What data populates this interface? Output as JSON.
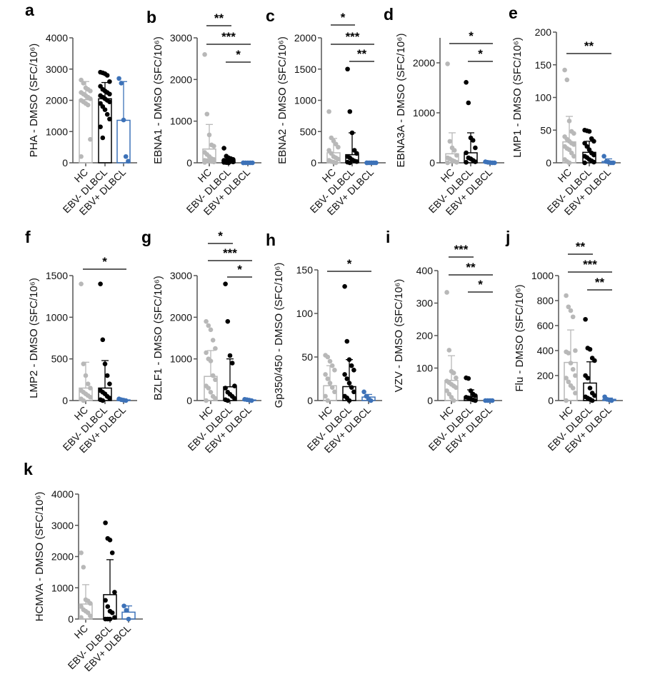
{
  "chart_data": [
    {
      "panel": "a",
      "type": "bar",
      "ylabel": "PHA - DMSO (SFC/10⁶)",
      "ylim": [
        0,
        4000
      ],
      "ticks": [
        0,
        1000,
        2000,
        3000,
        4000
      ],
      "categories": [
        "HC",
        "EBV- DLBCL",
        "EBV+ DLBCL"
      ],
      "means": [
        2020,
        2050,
        1360
      ],
      "sd_upper": [
        2600,
        2570,
        2600
      ],
      "points": [
        [
          2650,
          2550,
          2400,
          2350,
          2300,
          2250,
          2200,
          2150,
          2100,
          2050,
          2000,
          1950,
          1900,
          1850,
          750,
          200
        ],
        [
          2900,
          2880,
          2850,
          2800,
          2600,
          2450,
          2350,
          2300,
          2250,
          2200,
          2150,
          2100,
          2050,
          2000,
          1950,
          1900,
          1800,
          1700,
          1550,
          1400,
          1150,
          800
        ],
        [
          2700,
          2550,
          1370,
          200,
          50
        ]
      ],
      "significance": []
    },
    {
      "panel": "b",
      "type": "bar",
      "ylabel": "EBNA1 - DMSO (SFC/10⁶)",
      "ylim": [
        0,
        3000
      ],
      "ticks": [
        0,
        1000,
        2000,
        3000
      ],
      "categories": [
        "HC",
        "EBV- DLBCL",
        "EBV+ DLBCL"
      ],
      "means": [
        330,
        60,
        5
      ],
      "sd_upper": [
        920,
        130,
        8
      ],
      "points": [
        [
          2600,
          1170,
          670,
          430,
          400,
          250,
          200,
          150,
          100,
          80,
          60,
          50,
          40,
          30,
          20,
          10
        ],
        [
          350,
          160,
          120,
          100,
          80,
          60,
          50,
          40,
          30,
          20,
          10,
          5,
          0
        ],
        [
          0,
          0,
          0,
          0,
          0,
          0
        ]
      ],
      "significance": [
        {
          "groups": [
            0,
            1
          ],
          "label": "**"
        },
        {
          "groups": [
            0,
            2
          ],
          "label": "***"
        },
        {
          "groups": [
            1,
            2
          ],
          "label": "*"
        }
      ]
    },
    {
      "panel": "c",
      "type": "bar",
      "ylabel": "EBNA2 - DMSO (SFC/10⁶)",
      "ylim": [
        0,
        2000
      ],
      "ticks": [
        0,
        500,
        1000,
        1500,
        2000
      ],
      "categories": [
        "HC",
        "EBV- DLBCL",
        "EBV+ DLBCL"
      ],
      "means": [
        160,
        130,
        3
      ],
      "sd_upper": [
        390,
        480,
        5
      ],
      "points": [
        [
          820,
          400,
          350,
          300,
          250,
          200,
          150,
          100,
          80,
          60,
          40,
          20,
          10,
          0
        ],
        [
          1500,
          820,
          480,
          200,
          150,
          100,
          80,
          50,
          30,
          20,
          10,
          0
        ],
        [
          0,
          0,
          0,
          0,
          0,
          0
        ]
      ],
      "significance": [
        {
          "groups": [
            0,
            1
          ],
          "label": "*"
        },
        {
          "groups": [
            0,
            2
          ],
          "label": "***"
        },
        {
          "groups": [
            1,
            2
          ],
          "label": "**"
        }
      ]
    },
    {
      "panel": "d",
      "type": "bar",
      "ylabel": "EBNA3A - DMSO (SFC/10⁶)",
      "ylim": [
        0,
        2500
      ],
      "ticks": [
        0,
        1000,
        2000
      ],
      "categories": [
        "HC",
        "EBV- DLBCL",
        "EBV+ DLBCL"
      ],
      "means": [
        180,
        200,
        8
      ],
      "sd_upper": [
        600,
        600,
        15
      ],
      "points": [
        [
          1980,
          430,
          300,
          250,
          150,
          100,
          80,
          50,
          30,
          10,
          0
        ],
        [
          1610,
          1200,
          500,
          450,
          300,
          200,
          100,
          80,
          50,
          20,
          10
        ],
        [
          20,
          10,
          5,
          0,
          0
        ]
      ],
      "significance": [
        {
          "groups": [
            0,
            2
          ],
          "label": "*"
        },
        {
          "groups": [
            1,
            2
          ],
          "label": "*"
        }
      ]
    },
    {
      "panel": "e",
      "type": "bar",
      "ylabel": "LMP1 - DMSO (SFC/10⁶)",
      "ylim": [
        0,
        200
      ],
      "ticks": [
        0,
        50,
        100,
        150,
        200
      ],
      "categories": [
        "HC",
        "EBV- DLBCL",
        "EBV+ DLBCL"
      ],
      "means": [
        32,
        16,
        2
      ],
      "sd_upper": [
        71,
        33,
        6
      ],
      "points": [
        [
          142,
          127,
          64,
          48,
          45,
          40,
          36,
          33,
          30,
          28,
          25,
          22,
          20,
          15,
          10,
          5,
          2,
          0
        ],
        [
          50,
          49,
          48,
          37,
          33,
          30,
          25,
          20,
          15,
          12,
          10,
          8,
          5,
          3,
          1,
          0
        ],
        [
          10,
          2,
          1,
          0,
          0
        ]
      ],
      "significance": [
        {
          "groups": [
            0,
            2
          ],
          "label": "**"
        }
      ]
    },
    {
      "panel": "f",
      "type": "bar",
      "ylabel": "LMP2 - DMSO (SFC/10⁶)",
      "ylim": [
        0,
        1500
      ],
      "ticks": [
        0,
        500,
        1000,
        1500
      ],
      "categories": [
        "HC",
        "EBV- DLBCL",
        "EBV+ DLBCL"
      ],
      "means": [
        150,
        150,
        8
      ],
      "sd_upper": [
        460,
        480,
        15
      ],
      "points": [
        [
          1400,
          440,
          300,
          200,
          150,
          120,
          100,
          80,
          60,
          40,
          20,
          0
        ],
        [
          1400,
          730,
          440,
          300,
          200,
          120,
          100,
          80,
          50,
          30,
          10,
          0
        ],
        [
          20,
          10,
          5,
          0
        ]
      ],
      "significance": [
        {
          "groups": [
            0,
            2
          ],
          "label": "*"
        }
      ]
    },
    {
      "panel": "g",
      "type": "bar",
      "ylabel": "BZLF1 - DMSO (SFC/10⁶)",
      "ylim": [
        0,
        3000
      ],
      "ticks": [
        0,
        1000,
        2000,
        3000
      ],
      "categories": [
        "HC",
        "EBV- DLBCL",
        "EBV+ DLBCL"
      ],
      "means": [
        580,
        330,
        15
      ],
      "sd_upper": [
        1200,
        1000,
        25
      ],
      "points": [
        [
          1900,
          1800,
          1700,
          1450,
          1250,
          1150,
          1000,
          950,
          600,
          500,
          350,
          300,
          200,
          100,
          50,
          0
        ],
        [
          2800,
          1900,
          1080,
          900,
          350,
          300,
          200,
          150,
          100,
          50,
          20,
          0
        ],
        [
          30,
          20,
          10,
          0
        ]
      ],
      "significance": [
        {
          "groups": [
            0,
            1
          ],
          "label": "*"
        },
        {
          "groups": [
            0,
            2
          ],
          "label": "***"
        },
        {
          "groups": [
            1,
            2
          ],
          "label": "*"
        }
      ]
    },
    {
      "panel": "h",
      "type": "bar",
      "ylabel": "Gp350/450 - DMSO (SFC/10⁶)",
      "ylim": [
        0,
        150
      ],
      "ticks": [
        0,
        50,
        100,
        150
      ],
      "categories": [
        "HC",
        "EBV- DLBCL",
        "EBV+ DLBCL"
      ],
      "means": [
        17,
        16,
        4
      ],
      "sd_upper": [
        40,
        47,
        7
      ],
      "points": [
        [
          52,
          50,
          45,
          40,
          35,
          30,
          25,
          20,
          15,
          10,
          5,
          0
        ],
        [
          131,
          68,
          47,
          40,
          35,
          30,
          25,
          20,
          15,
          10,
          5,
          3,
          0
        ],
        [
          10,
          5,
          2,
          0
        ]
      ],
      "significance": [
        {
          "groups": [
            0,
            2
          ],
          "label": "*"
        }
      ]
    },
    {
      "panel": "i",
      "type": "bar",
      "ylabel": "VZV - DMSO (SFC/10⁶)",
      "ylim": [
        0,
        400
      ],
      "ticks": [
        0,
        100,
        200,
        300,
        400
      ],
      "categories": [
        "HC",
        "EBV- DLBCL",
        "EBV+ DLBCL"
      ],
      "means": [
        62,
        12,
        0
      ],
      "sd_upper": [
        138,
        33,
        0
      ],
      "points": [
        [
          333,
          155,
          90,
          85,
          70,
          60,
          55,
          50,
          45,
          40,
          30,
          20,
          10,
          0
        ],
        [
          70,
          68,
          30,
          20,
          15,
          10,
          8,
          5,
          2,
          0
        ],
        [
          0,
          0,
          0,
          0
        ]
      ],
      "significance": [
        {
          "groups": [
            0,
            1
          ],
          "label": "***"
        },
        {
          "groups": [
            0,
            2
          ],
          "label": "**"
        },
        {
          "groups": [
            1,
            2
          ],
          "label": "*"
        }
      ]
    },
    {
      "panel": "j",
      "type": "bar",
      "ylabel": "Flu - DMSO (SFC/10⁶)",
      "ylim": [
        0,
        1000
      ],
      "ticks": [
        0,
        200,
        400,
        600,
        800,
        1000
      ],
      "categories": [
        "HC",
        "EBV- DLBCL",
        "EBV+ DLBCL"
      ],
      "means": [
        305,
        140,
        10
      ],
      "sd_upper": [
        565,
        310,
        20
      ],
      "points": [
        [
          840,
          750,
          720,
          670,
          400,
          390,
          380,
          300,
          250,
          200,
          180,
          150,
          120,
          100,
          60,
          0
        ],
        [
          650,
          420,
          410,
          340,
          320,
          200,
          180,
          100,
          60,
          40,
          30,
          20,
          10,
          0
        ],
        [
          30,
          10,
          5,
          0
        ]
      ],
      "significance": [
        {
          "groups": [
            0,
            1
          ],
          "label": "**"
        },
        {
          "groups": [
            0,
            2
          ],
          "label": "***"
        },
        {
          "groups": [
            1,
            2
          ],
          "label": "**"
        }
      ]
    },
    {
      "panel": "k",
      "type": "bar",
      "ylabel": "HCMVA - DMSO (SFC/10⁶)",
      "ylim": [
        0,
        4000
      ],
      "ticks": [
        0,
        1000,
        2000,
        3000,
        4000
      ],
      "categories": [
        "HC",
        "EBV- DLBCL",
        "EBV+ DLBCL"
      ],
      "means": [
        480,
        780,
        220
      ],
      "sd_upper": [
        1100,
        1900,
        420
      ],
      "points": [
        [
          2120,
          1660,
          620,
          580,
          500,
          400,
          300,
          250,
          200,
          100,
          50
        ],
        [
          3080,
          2580,
          2530,
          2120,
          860,
          600,
          400,
          250,
          200,
          50,
          0,
          0,
          0
        ],
        [
          420,
          280,
          0
        ]
      ],
      "significance": []
    }
  ],
  "colors": {
    "HC": "#b8b8b8",
    "EBV- DLBCL": "#000000",
    "EBV+ DLBCL": "#3d72b8"
  }
}
